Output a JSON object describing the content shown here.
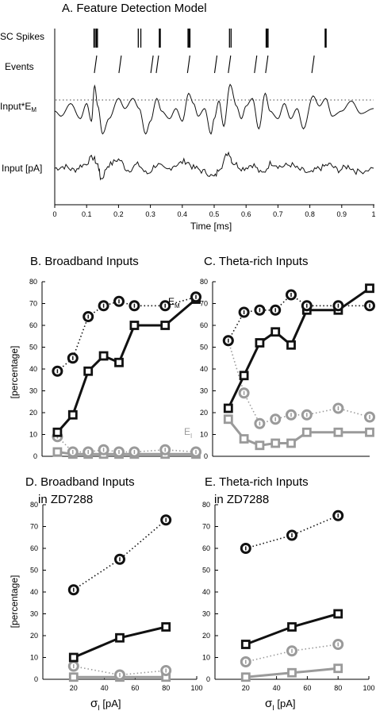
{
  "panel_a": {
    "title": "A. Feature Detection Model",
    "row_labels": {
      "spikes": "SC Spikes",
      "events": "Events",
      "filtered": "Input*E",
      "filtered_sub": "M",
      "input": "Input [pA]"
    },
    "xlabel": "Time [ms]",
    "xticks": [
      "0",
      "0.1",
      "0.2",
      "0.3",
      "0.4",
      "0.5",
      "0.6",
      "0.7",
      "0.8",
      "0.9",
      "1"
    ]
  },
  "chart_data": [
    {
      "type": "line",
      "panel": "A",
      "title": "A. Feature Detection Model",
      "xlabel": "Time [ms]",
      "xlim": [
        0,
        1
      ],
      "spike_times": [
        0.123,
        0.127,
        0.131,
        0.134,
        0.262,
        0.27,
        0.328,
        0.331,
        0.418,
        0.421,
        0.424,
        0.548,
        0.553,
        0.663,
        0.666,
        0.669,
        0.848,
        0.851
      ],
      "event_times": [
        0.128,
        0.205,
        0.305,
        0.322,
        0.42,
        0.505,
        0.548,
        0.63,
        0.665,
        0.81
      ],
      "input_EM": [
        [
          0,
          0
        ],
        [
          0.02,
          -0.2
        ],
        [
          0.05,
          0.3
        ],
        [
          0.08,
          -0.3
        ],
        [
          0.1,
          0.3
        ],
        [
          0.115,
          -0.4
        ],
        [
          0.125,
          1.0
        ],
        [
          0.135,
          0.2
        ],
        [
          0.15,
          -0.9
        ],
        [
          0.17,
          -0.3
        ],
        [
          0.2,
          0.5
        ],
        [
          0.22,
          0.1
        ],
        [
          0.245,
          0.5
        ],
        [
          0.265,
          0.1
        ],
        [
          0.285,
          -0.9
        ],
        [
          0.3,
          -0.4
        ],
        [
          0.32,
          0.5
        ],
        [
          0.335,
          0.0
        ],
        [
          0.36,
          -0.3
        ],
        [
          0.38,
          0.1
        ],
        [
          0.4,
          -0.4
        ],
        [
          0.42,
          0.7
        ],
        [
          0.435,
          0.3
        ],
        [
          0.45,
          -0.2
        ],
        [
          0.47,
          0.1
        ],
        [
          0.49,
          -0.9
        ],
        [
          0.5,
          -0.3
        ],
        [
          0.515,
          0.4
        ],
        [
          0.53,
          -0.6
        ],
        [
          0.55,
          1.05
        ],
        [
          0.57,
          0.2
        ],
        [
          0.585,
          -0.3
        ],
        [
          0.6,
          0.2
        ],
        [
          0.62,
          0.5
        ],
        [
          0.64,
          -0.7
        ],
        [
          0.66,
          0.7
        ],
        [
          0.675,
          0.0
        ],
        [
          0.7,
          -0.3
        ],
        [
          0.72,
          0.3
        ],
        [
          0.74,
          -0.3
        ],
        [
          0.76,
          0.1
        ],
        [
          0.78,
          -0.7
        ],
        [
          0.81,
          0.6
        ],
        [
          0.83,
          0.2
        ],
        [
          0.85,
          0.5
        ],
        [
          0.87,
          -0.2
        ],
        [
          0.9,
          0.0
        ],
        [
          0.93,
          0.4
        ],
        [
          0.96,
          -0.1
        ],
        [
          1,
          0.1
        ]
      ],
      "input_pA": [
        [
          0,
          0
        ],
        [
          0.03,
          0.1
        ],
        [
          0.06,
          -0.1
        ],
        [
          0.09,
          0.2
        ],
        [
          0.12,
          0.6
        ],
        [
          0.135,
          0.2
        ],
        [
          0.145,
          -0.6
        ],
        [
          0.17,
          0.2
        ],
        [
          0.2,
          0.5
        ],
        [
          0.23,
          -0.1
        ],
        [
          0.26,
          0.2
        ],
        [
          0.29,
          -0.3
        ],
        [
          0.32,
          0.2
        ],
        [
          0.35,
          -0.1
        ],
        [
          0.38,
          0.2
        ],
        [
          0.41,
          0.4
        ],
        [
          0.44,
          0.0
        ],
        [
          0.47,
          -0.2
        ],
        [
          0.5,
          -0.5
        ],
        [
          0.52,
          0.1
        ],
        [
          0.545,
          0.9
        ],
        [
          0.56,
          0.3
        ],
        [
          0.59,
          0.0
        ],
        [
          0.62,
          0.2
        ],
        [
          0.65,
          -0.3
        ],
        [
          0.68,
          0.3
        ],
        [
          0.71,
          0.1
        ],
        [
          0.74,
          0.2
        ],
        [
          0.77,
          -0.1
        ],
        [
          0.8,
          -0.3
        ],
        [
          0.83,
          0.0
        ],
        [
          0.86,
          0.2
        ],
        [
          0.89,
          -0.1
        ],
        [
          0.92,
          0.1
        ],
        [
          0.95,
          -0.2
        ],
        [
          1,
          0.0
        ]
      ]
    },
    {
      "type": "line",
      "panel": "B",
      "title": "B. Broadband Inputs",
      "xlim": [
        0,
        100
      ],
      "ylim": [
        0,
        80
      ],
      "x": [
        10,
        20,
        30,
        40,
        50,
        60,
        80,
        100
      ],
      "series": [
        {
          "name": "",
          "style": "dotted-black",
          "values": [
            39,
            45,
            64,
            69,
            71,
            69,
            69,
            73
          ]
        },
        {
          "name": "E",
          "name_sub": "M",
          "style": "solid-black",
          "values": [
            11,
            19,
            39,
            46,
            43,
            60,
            60,
            72
          ]
        },
        {
          "name": "",
          "style": "dotted-gray",
          "values": [
            9,
            2,
            2,
            3,
            2,
            2,
            3,
            2
          ]
        },
        {
          "name": "E",
          "name_sub": "I",
          "style": "solid-gray",
          "values": [
            2,
            1,
            1,
            1,
            1,
            1,
            1,
            1
          ]
        }
      ]
    },
    {
      "type": "line",
      "panel": "C",
      "title": "C. Theta-rich Inputs",
      "xlim": [
        0,
        100
      ],
      "ylim": [
        0,
        80
      ],
      "x": [
        10,
        20,
        30,
        40,
        50,
        60,
        80,
        100
      ],
      "series": [
        {
          "name": "",
          "style": "dotted-black",
          "values": [
            53,
            66,
            67,
            67,
            74,
            69,
            69,
            69
          ]
        },
        {
          "name": "",
          "style": "solid-black",
          "values": [
            22,
            37,
            52,
            57,
            51,
            67,
            67,
            77
          ]
        },
        {
          "name": "",
          "style": "dotted-gray",
          "values": [
            53,
            29,
            15,
            17,
            19,
            19,
            22,
            18
          ]
        },
        {
          "name": "",
          "style": "solid-gray",
          "values": [
            17,
            8,
            5,
            6,
            6,
            11,
            11,
            11
          ]
        }
      ]
    },
    {
      "type": "line",
      "panel": "D",
      "title": "D.  Broadband Inputs",
      "subtitle": "in ZD7288",
      "xlim": [
        0,
        100
      ],
      "ylim": [
        0,
        80
      ],
      "x": [
        20,
        50,
        80
      ],
      "series": [
        {
          "name": "",
          "style": "dotted-black",
          "values": [
            41,
            55,
            73
          ]
        },
        {
          "name": "",
          "style": "solid-black",
          "values": [
            10,
            19,
            24
          ]
        },
        {
          "name": "",
          "style": "dotted-gray",
          "values": [
            6,
            2,
            4
          ]
        },
        {
          "name": "",
          "style": "solid-gray",
          "values": [
            1,
            1,
            1
          ]
        }
      ]
    },
    {
      "type": "line",
      "panel": "E",
      "title": "E. Theta-rich Inputs",
      "subtitle": "in ZD7288",
      "xlim": [
        0,
        100
      ],
      "ylim": [
        0,
        80
      ],
      "x": [
        20,
        50,
        80
      ],
      "series": [
        {
          "name": "",
          "style": "dotted-black",
          "values": [
            60,
            66,
            75
          ]
        },
        {
          "name": "",
          "style": "solid-black",
          "values": [
            16,
            24,
            30
          ]
        },
        {
          "name": "",
          "style": "dotted-gray",
          "values": [
            8,
            13,
            16
          ]
        },
        {
          "name": "",
          "style": "solid-gray",
          "values": [
            1,
            3,
            5
          ]
        }
      ]
    }
  ],
  "shared": {
    "ylabel": "[percentage]",
    "xlabel": "σ",
    "xlabel_sub": "I",
    "xlabel_unit": " [pA]",
    "yticks": [
      "0",
      "10",
      "20",
      "30",
      "40",
      "50",
      "60",
      "70",
      "80"
    ],
    "xticks": [
      "20",
      "40",
      "60",
      "80",
      "100"
    ]
  },
  "colors": {
    "black": "#111111",
    "gray": "#9a9a9a",
    "axis": "#000000"
  }
}
